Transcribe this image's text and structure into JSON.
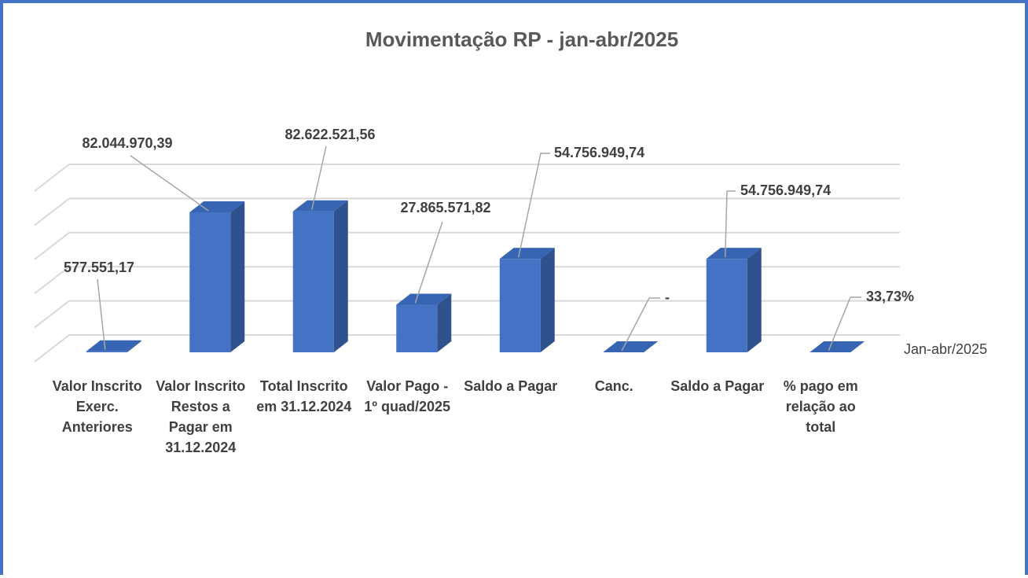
{
  "chart_data": {
    "type": "bar3d",
    "title": "Movimentação RP - jan-abr/2025",
    "categories": [
      "Valor Inscrito Exerc. Anteriores",
      "Valor Inscrito Restos a Pagar em 31.12.2024",
      "Total Inscrito em 31.12.2024",
      "Valor Pago - 1º quad/2025",
      "Saldo a Pagar",
      "Canc.",
      "Saldo a Pagar",
      "% pago em relação ao total"
    ],
    "series": [
      {
        "name": "Jan-abr/2025",
        "color": "#4472c4",
        "values": [
          577551.17,
          82044970.39,
          82622521.56,
          27865571.82,
          54756949.74,
          0,
          54756949.74,
          33.73
        ],
        "value_labels": [
          "577.551,17",
          "82.044.970,39",
          "82.622.521,56",
          "27.865.571,82",
          "54.756.949,74",
          "-",
          "54.756.949,74",
          "33,73%"
        ]
      }
    ],
    "ylim": [
      0,
      100000000
    ],
    "yticks": [
      0,
      20000000,
      40000000,
      60000000,
      80000000,
      100000000
    ],
    "grid": true
  }
}
